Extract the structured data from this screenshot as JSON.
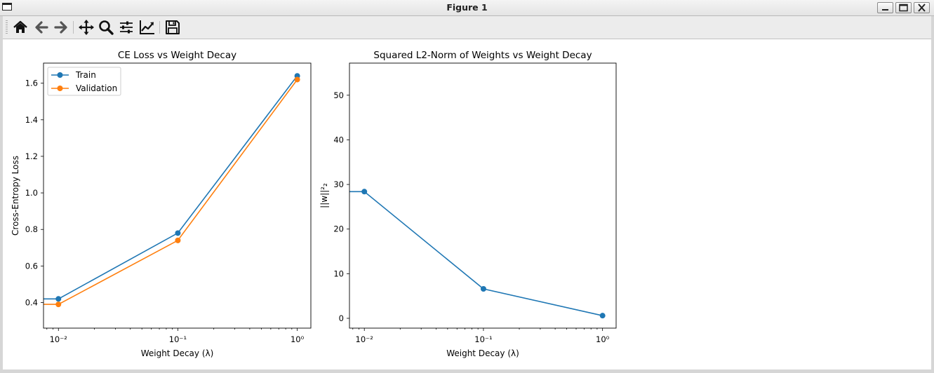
{
  "window": {
    "title": "Figure 1"
  },
  "toolbar": {
    "buttons": [
      {
        "name": "home-button",
        "icon": "home-icon"
      },
      {
        "name": "back-button",
        "icon": "arrow-left-icon"
      },
      {
        "name": "forward-button",
        "icon": "arrow-right-icon"
      },
      {
        "name": "pan-button",
        "icon": "move-icon"
      },
      {
        "name": "zoom-button",
        "icon": "search-icon"
      },
      {
        "name": "configure-subplots-button",
        "icon": "sliders-icon"
      },
      {
        "name": "edit-axis-button",
        "icon": "line-chart-icon"
      },
      {
        "name": "save-button",
        "icon": "floppy-disk-icon"
      }
    ]
  },
  "colors": {
    "train": "#1f77b4",
    "validation": "#ff7f0e"
  },
  "chart_data": [
    {
      "type": "line",
      "title": "CE Loss vs Weight Decay",
      "xlabel": "Weight Decay (λ)",
      "ylabel": "Cross-Entropy Loss",
      "xscale": "log",
      "x": [
        0.0,
        0.01,
        0.1,
        1.0
      ],
      "xticks": [
        0.01,
        0.1,
        1.0
      ],
      "xtick_labels": [
        "10⁻²",
        "10⁻¹",
        "10⁰"
      ],
      "yticks": [
        0.4,
        0.6,
        0.8,
        1.0,
        1.2,
        1.4,
        1.6
      ],
      "ytick_labels": [
        "0.4",
        "0.6",
        "0.8",
        "1.0",
        "1.2",
        "1.4",
        "1.6"
      ],
      "xlim": [
        0.0075,
        1.3
      ],
      "ylim": [
        0.26,
        1.71
      ],
      "legend": "top-left",
      "series": [
        {
          "name": "Train",
          "color": "#1f77b4",
          "values": [
            0.42,
            0.42,
            0.78,
            1.64
          ]
        },
        {
          "name": "Validation",
          "color": "#ff7f0e",
          "values": [
            0.39,
            0.39,
            0.74,
            1.62
          ]
        }
      ]
    },
    {
      "type": "line",
      "title": "Squared L2-Norm of Weights vs Weight Decay",
      "xlabel": "Weight Decay (λ)",
      "ylabel": "||w||²₂",
      "xscale": "log",
      "x": [
        0.0,
        0.01,
        0.1,
        1.0
      ],
      "xticks": [
        0.01,
        0.1,
        1.0
      ],
      "xtick_labels": [
        "10⁻²",
        "10⁻¹",
        "10⁰"
      ],
      "yticks": [
        0,
        10,
        20,
        30,
        40,
        50
      ],
      "ytick_labels": [
        "0",
        "10",
        "20",
        "30",
        "40",
        "50"
      ],
      "xlim": [
        0.0075,
        1.3
      ],
      "ylim": [
        -2.2,
        57.2
      ],
      "series": [
        {
          "color": "#1f77b4",
          "values": [
            28.4,
            28.4,
            6.6,
            0.6
          ]
        }
      ]
    }
  ]
}
